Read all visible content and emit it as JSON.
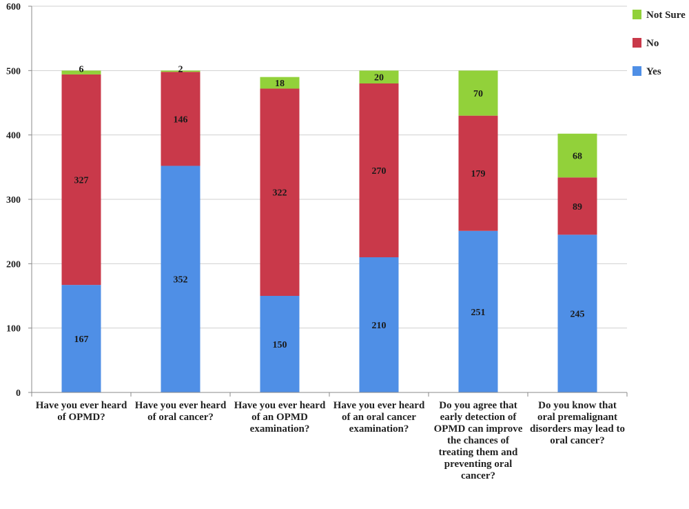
{
  "chart_data": {
    "type": "bar",
    "stacked": true,
    "categories": [
      "Have you ever heard of OPMD?",
      "Have you ever heard of oral cancer?",
      "Have you ever heard of an OPMD examination?",
      "Have you ever heard of an oral cancer examination?",
      "Do you agree that early detection of OPMD can improve the chances of treating them and preventing oral cancer?",
      "Do you know that oral premalignant disorders may lead to oral cancer?"
    ],
    "series": [
      {
        "name": "Yes",
        "color": "#4f8fe6",
        "values": [
          167,
          352,
          150,
          210,
          251,
          245
        ]
      },
      {
        "name": "No",
        "color": "#c9394a",
        "values": [
          327,
          146,
          322,
          270,
          179,
          89
        ]
      },
      {
        "name": "Not Sure",
        "color": "#92d13a",
        "values": [
          6,
          2,
          18,
          20,
          70,
          68
        ]
      }
    ],
    "ylim": [
      0,
      600
    ],
    "yticks": [
      0,
      100,
      200,
      300,
      400,
      500,
      600
    ],
    "grid": true,
    "legend": "right",
    "title": "",
    "xlabel": "",
    "ylabel": ""
  }
}
